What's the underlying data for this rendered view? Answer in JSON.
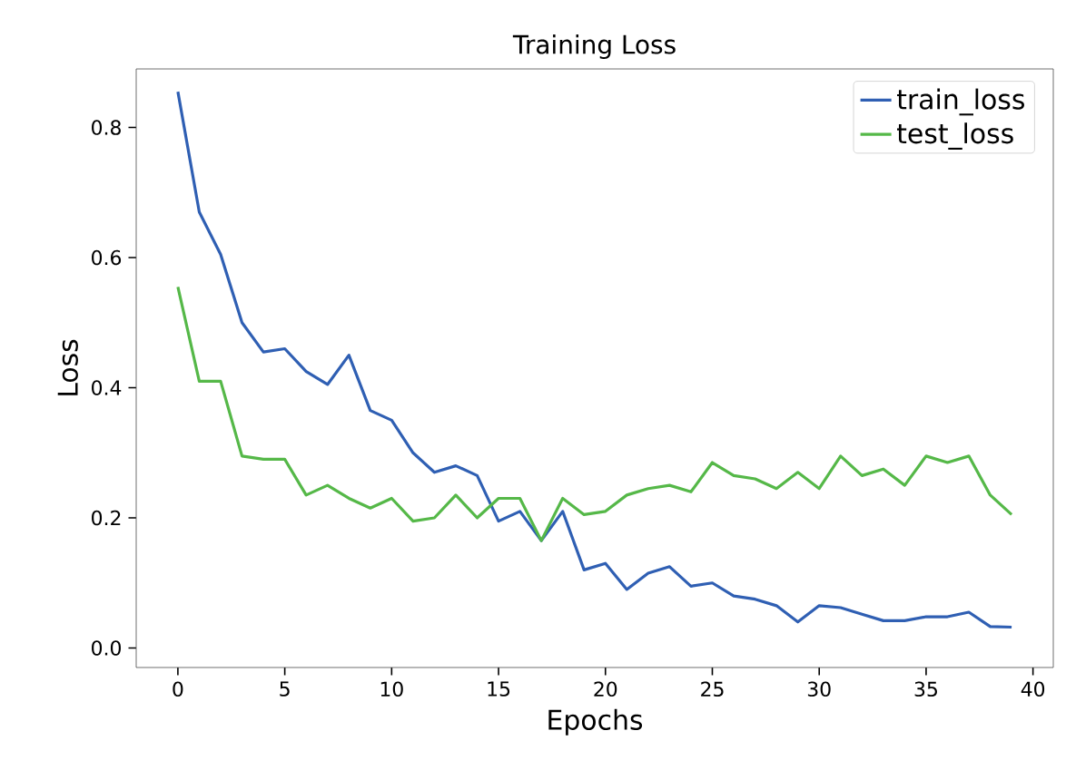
{
  "chart_data": {
    "type": "line",
    "title": "Training Loss",
    "xlabel": "Epochs",
    "ylabel": "Loss",
    "x": [
      0,
      1,
      2,
      3,
      4,
      5,
      6,
      7,
      8,
      9,
      10,
      11,
      12,
      13,
      14,
      15,
      16,
      17,
      18,
      19,
      20,
      21,
      22,
      23,
      24,
      25,
      26,
      27,
      28,
      29,
      30,
      31,
      32,
      33,
      34,
      35,
      36,
      37,
      38,
      39
    ],
    "series": [
      {
        "name": "train_loss",
        "color": "#2f5fb3",
        "values": [
          0.855,
          0.67,
          0.605,
          0.5,
          0.455,
          0.46,
          0.425,
          0.405,
          0.45,
          0.365,
          0.35,
          0.3,
          0.27,
          0.28,
          0.265,
          0.195,
          0.21,
          0.165,
          0.21,
          0.12,
          0.13,
          0.09,
          0.115,
          0.125,
          0.095,
          0.1,
          0.08,
          0.075,
          0.065,
          0.04,
          0.065,
          0.062,
          0.052,
          0.042,
          0.042,
          0.048,
          0.048,
          0.055,
          0.033,
          0.032
        ]
      },
      {
        "name": "test_loss",
        "color": "#55b848",
        "values": [
          0.555,
          0.41,
          0.41,
          0.295,
          0.29,
          0.29,
          0.235,
          0.25,
          0.23,
          0.215,
          0.23,
          0.195,
          0.2,
          0.235,
          0.2,
          0.23,
          0.23,
          0.165,
          0.23,
          0.205,
          0.21,
          0.235,
          0.245,
          0.25,
          0.24,
          0.285,
          0.265,
          0.26,
          0.245,
          0.27,
          0.245,
          0.295,
          0.265,
          0.275,
          0.25,
          0.295,
          0.285,
          0.295,
          0.235,
          0.205
        ]
      }
    ],
    "xlim": [
      -1.95,
      40.95
    ],
    "ylim": [
      -0.03,
      0.89
    ],
    "xticks": [
      0,
      5,
      10,
      15,
      20,
      25,
      30,
      35,
      40
    ],
    "yticks": [
      {
        "value": 0,
        "label": "0.0"
      },
      {
        "value": 0.2,
        "label": "0.2"
      },
      {
        "value": 0.4,
        "label": "0.4"
      },
      {
        "value": 0.6,
        "label": "0.6"
      },
      {
        "value": 0.8,
        "label": "0.8"
      }
    ],
    "legend": "top right",
    "grid": false,
    "marker": "none",
    "line_style": "solid"
  }
}
